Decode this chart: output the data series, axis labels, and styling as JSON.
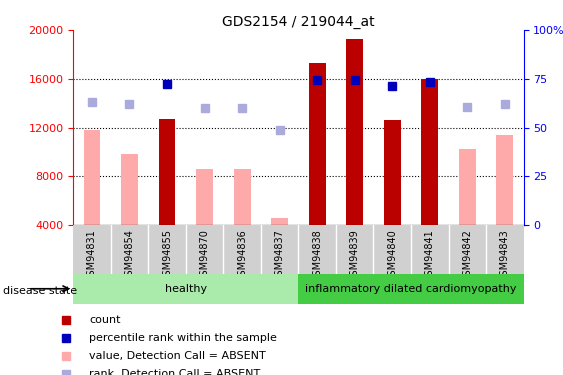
{
  "title": "GDS2154 / 219044_at",
  "samples": [
    "GSM94831",
    "GSM94854",
    "GSM94855",
    "GSM94870",
    "GSM94836",
    "GSM94837",
    "GSM94838",
    "GSM94839",
    "GSM94840",
    "GSM94841",
    "GSM94842",
    "GSM94843"
  ],
  "red_bars": [
    null,
    null,
    12700,
    null,
    null,
    null,
    17300,
    19300,
    12600,
    16000,
    null,
    null
  ],
  "pink_bars": [
    11800,
    9800,
    null,
    8600,
    8600,
    4600,
    null,
    null,
    null,
    null,
    10200,
    11400
  ],
  "blue_squares": [
    null,
    null,
    15600,
    null,
    null,
    null,
    15900,
    15900,
    15400,
    15700,
    null,
    null
  ],
  "light_blue_squares": [
    14100,
    13900,
    null,
    13600,
    13600,
    11800,
    null,
    null,
    null,
    null,
    13700,
    13900
  ],
  "ylim_left": [
    4000,
    20000
  ],
  "ylim_right": [
    0,
    100
  ],
  "yticks_left": [
    4000,
    8000,
    12000,
    16000,
    20000
  ],
  "yticks_right": [
    0,
    25,
    50,
    75,
    100
  ],
  "grid_values": [
    8000,
    12000,
    16000
  ],
  "healthy_color": "#aaeaaa",
  "inflammatory_color": "#44cc44",
  "label_bg_color": "#d0d0d0",
  "bar_red": "#bb0000",
  "bar_pink": "#ffaaaa",
  "sq_blue": "#0000bb",
  "sq_light_blue": "#aaaadd",
  "title_fontsize": 10,
  "axis_fontsize": 8,
  "legend_labels": [
    "count",
    "percentile rank within the sample",
    "value, Detection Call = ABSENT",
    "rank, Detection Call = ABSENT"
  ],
  "disease_label": "disease state",
  "group_labels": [
    "healthy",
    "inflammatory dilated cardiomyopathy"
  ],
  "n_healthy": 6,
  "n_total": 12
}
